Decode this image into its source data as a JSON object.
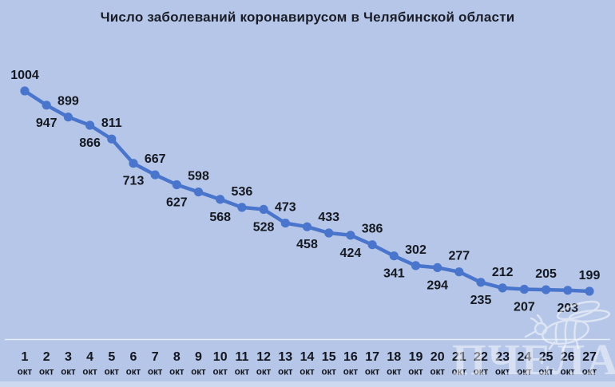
{
  "page": {
    "background_color": "#b5c6e8",
    "bottom_edge_color": "#cdd9ef"
  },
  "chart_data": {
    "type": "line",
    "title": "Число заболеваний коронавирусом в Челябинской области",
    "categories": [
      "1",
      "2",
      "3",
      "4",
      "5",
      "6",
      "7",
      "8",
      "9",
      "10",
      "11",
      "12",
      "13",
      "14",
      "15",
      "16",
      "17",
      "18",
      "19",
      "20",
      "21",
      "22",
      "23",
      "24",
      "25",
      "26",
      "27"
    ],
    "category_unit": "окт",
    "values": [
      1004,
      947,
      899,
      866,
      811,
      713,
      667,
      627,
      598,
      568,
      536,
      528,
      473,
      458,
      433,
      424,
      386,
      341,
      302,
      294,
      277,
      235,
      212,
      207,
      205,
      203,
      199
    ],
    "xlabel": "",
    "ylabel": "",
    "ylim": [
      199,
      1004
    ],
    "grid": false,
    "legend_position": "none",
    "data_labels": "alternating above/below each point",
    "line_color": "#4a75cc",
    "marker_color": "#4a75cc",
    "label_color": "#15181f",
    "axis_line_color": "#e6ecf7",
    "title_color": "#1a1d27"
  },
  "watermark": {
    "text": "ПЧЕЛА",
    "color": "rgba(255,255,255,0.48)",
    "icon": "bee-icon"
  }
}
